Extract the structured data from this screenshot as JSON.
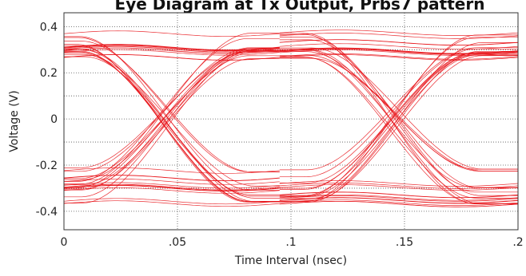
{
  "chart_data": {
    "type": "line",
    "title": "Eye Diagram at Tx Output, Prbs7 pattern",
    "xlabel": "Time Interval (nsec)",
    "ylabel": "Voltage (V)",
    "xlim": [
      0,
      0.2
    ],
    "ylim": [
      -0.48,
      0.46
    ],
    "x_ticks": [
      0,
      0.05,
      0.1,
      0.15,
      0.2
    ],
    "x_tick_labels": [
      "0",
      ".05",
      ".1",
      ".15",
      ".2"
    ],
    "y_ticks": [
      0.4,
      0.2,
      0,
      -0.2,
      -0.4
    ],
    "y_tick_labels": [
      "0.4",
      "0.2",
      "0",
      "-0.2",
      "-0.4"
    ],
    "grid": true,
    "grid_style": "dotted",
    "unit_interval": 0.1,
    "crossing_times": [
      0.045,
      0.145
    ],
    "crossing_voltage": 0,
    "series": [
      {
        "color": "#e8141a",
        "high_levels": [
          0.27,
          0.29,
          0.3,
          0.31,
          0.33,
          0.35,
          0.37
        ],
        "low_levels": [
          -0.22,
          -0.26,
          -0.28,
          -0.3,
          -0.32,
          -0.34,
          -0.36
        ]
      }
    ]
  }
}
